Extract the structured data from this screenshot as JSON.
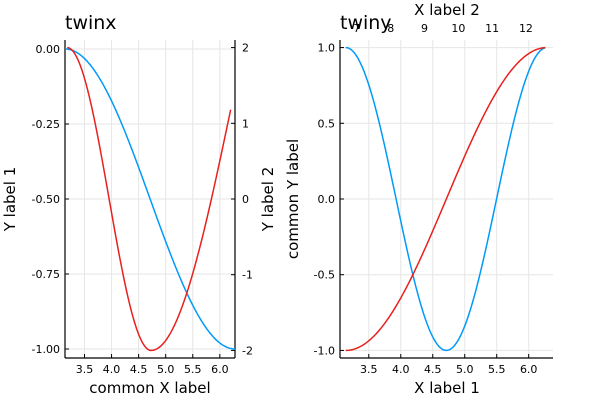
{
  "chart_data": [
    {
      "type": "line",
      "title": "twinx",
      "xlabel": "common X label",
      "ylabel": "Y label 1",
      "ylabel_right": "",
      "xlim": [
        3.14,
        6.28
      ],
      "ylim": [
        -1.03,
        0.03
      ],
      "ylim_right": [
        -2.1,
        2.1
      ],
      "x_ticks": [
        "3.5",
        "4.0",
        "4.5",
        "5.0",
        "5.5",
        "6.0"
      ],
      "y_ticks": [
        "0.00",
        "-0.25",
        "-0.50",
        "-0.75",
        "-1.00"
      ],
      "y_ticks_right": [
        "2",
        "1",
        "0",
        "-1",
        "-2"
      ],
      "grid": true,
      "legend": "none",
      "series": [
        {
          "axis": "left",
          "color": "#009AFA",
          "expr": "-(1+cos x)/2"
        },
        {
          "axis": "right",
          "color": "#E8201E",
          "expr": "2 sin(2(x-π)) - like profile"
        }
      ]
    },
    {
      "type": "line",
      "title": "twiny",
      "xlabel": "X label 1",
      "xlabel_top": "X label 2",
      "ylabel": "Y label 2",
      "ylabel2": "common Y label",
      "xlim": [
        3.05,
        6.38
      ],
      "xlim_top": [
        6.5,
        12.8
      ],
      "ylim": [
        -1.05,
        1.05
      ],
      "x_ticks": [
        "3.5",
        "4.0",
        "4.5",
        "5.0",
        "5.5",
        "6.0"
      ],
      "x_ticks_top": [
        "7",
        "8",
        "9",
        "10",
        "11",
        "12"
      ],
      "y_ticks": [
        "1.0",
        "0.5",
        "0.0",
        "-0.5",
        "-1.0"
      ],
      "grid": true,
      "legend": "none",
      "series": [
        {
          "axis": "bottom",
          "color": "#009AFA",
          "expr": "cos(2(x-π))"
        },
        {
          "axis": "bottom",
          "color": "#E8201E",
          "expr": "-cos(x-π)"
        }
      ]
    }
  ]
}
